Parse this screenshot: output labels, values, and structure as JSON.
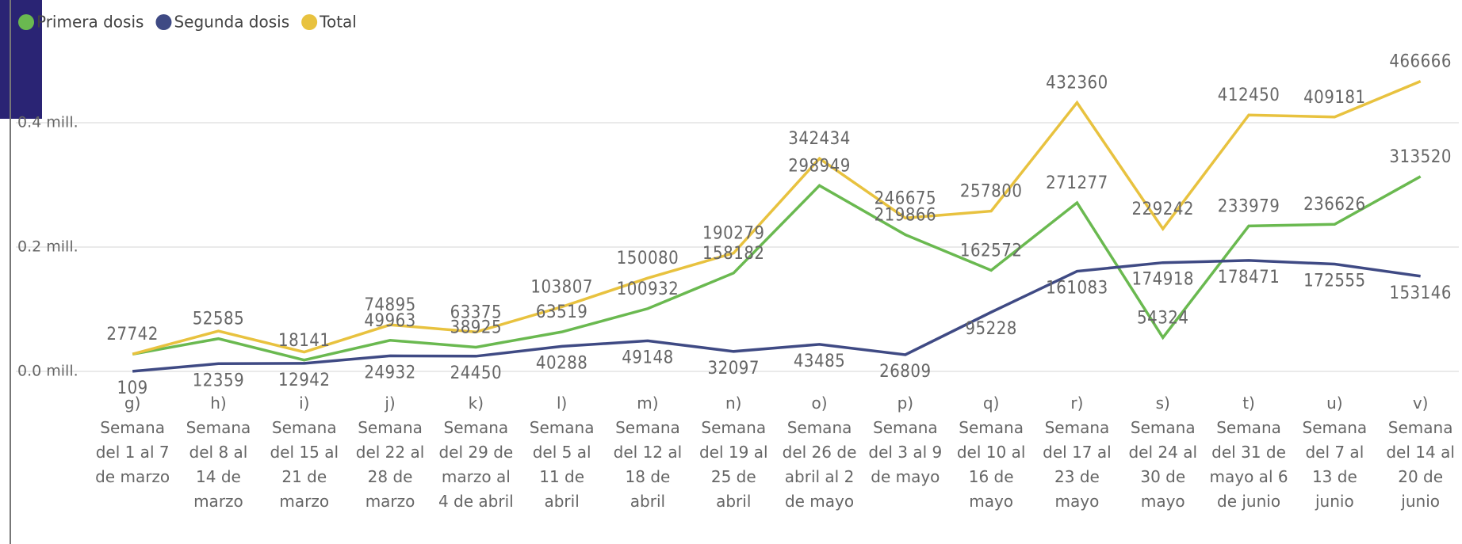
{
  "chart_data": {
    "type": "line",
    "categories": [
      "g) Semana del 1 al 7 de marzo",
      "h) Semana del 8 al 14 de marzo",
      "i) Semana del 15 al 21 de marzo",
      "j) Semana del 22 al 28 de marzo",
      "k) Semana del 29 de marzo al 4 de abril",
      "l) Semana del 5 al 11 de abril",
      "m) Semana del 12 al 18 de abril",
      "n) Semana del 19 al 25 de abril",
      "o) Semana del 26 de abril al 2 de mayo",
      "p) Semana del 3 al 9 de mayo",
      "q) Semana del 10 al 16 de mayo",
      "r) Semana del 17 al 23 de mayo",
      "s) Semana del 24 al 30 de mayo",
      "t) Semana del 31 de mayo al 6 de junio",
      "u) Semana del 7 al 13 de junio",
      "v) Semana del 14 al 20 de junio"
    ],
    "series": [
      {
        "name": "Primera dosis",
        "color": "#6ab950",
        "values": [
          27742,
          52585,
          18141,
          49963,
          38925,
          63519,
          100932,
          158182,
          298949,
          219866,
          162572,
          271277,
          54324,
          233979,
          236626,
          313520
        ]
      },
      {
        "name": "Segunda dosis",
        "color": "#3f4a84",
        "values": [
          109,
          12359,
          12942,
          24932,
          24450,
          40288,
          49148,
          32097,
          43485,
          26809,
          95228,
          161083,
          174918,
          178471,
          172555,
          153146
        ]
      },
      {
        "name": "Total",
        "color": "#e8c23f",
        "values": [
          27851,
          64944,
          31083,
          74895,
          63375,
          103807,
          150080,
          190279,
          342434,
          246675,
          257800,
          432360,
          229242,
          412450,
          409181,
          466666
        ],
        "value_labels": [
          null,
          null,
          null,
          "74895",
          "63375",
          "103807",
          "150080",
          "190279",
          "342434",
          "246675",
          "257800",
          "432360",
          "229242",
          "412450",
          "409181",
          "466666"
        ]
      }
    ],
    "ylim": [
      0,
      500000
    ],
    "yticks": [
      {
        "value": 0,
        "label": "0.0 mill."
      },
      {
        "value": 200000,
        "label": "0.2 mill."
      },
      {
        "value": 400000,
        "label": "0.4 mill."
      }
    ],
    "grid": true,
    "legend": "top-left"
  }
}
